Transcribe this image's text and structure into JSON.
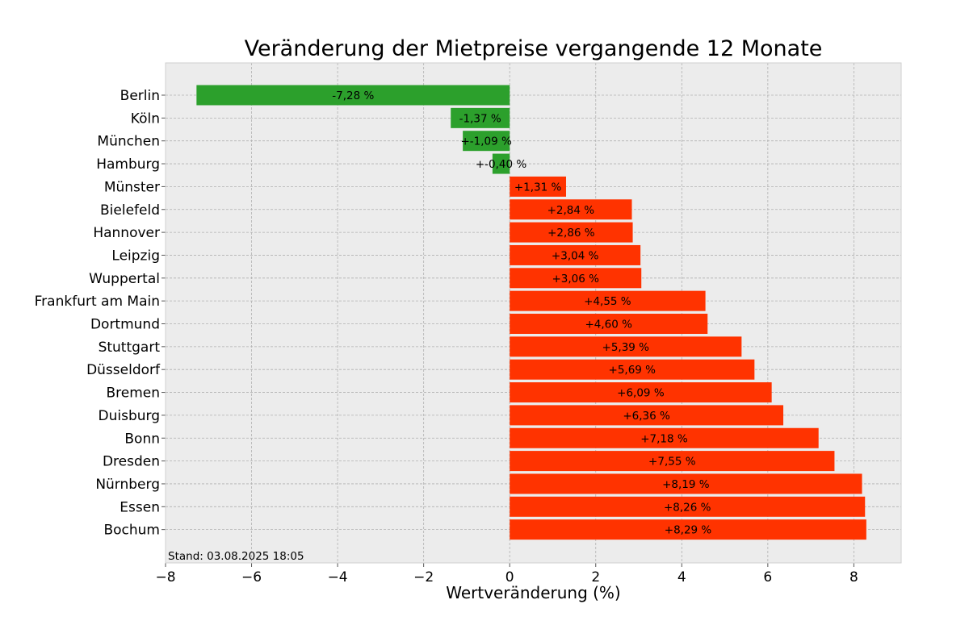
{
  "chart_data": {
    "type": "bar",
    "orientation": "horizontal",
    "title": "Veränderung der Mietpreise vergangende 12 Monate",
    "xlabel": "Wertveränderung (%)",
    "ylabel": "",
    "xlim": [
      -8.0,
      9.1
    ],
    "xticks": [
      -8,
      -6,
      -4,
      -2,
      0,
      2,
      4,
      6,
      8
    ],
    "xtick_labels": [
      "−8",
      "−6",
      "−4",
      "−2",
      "0",
      "2",
      "4",
      "6",
      "8"
    ],
    "grid": true,
    "categories": [
      "Berlin",
      "Köln",
      "München",
      "Hamburg",
      "Münster",
      "Bielefeld",
      "Hannover",
      "Leipzig",
      "Wuppertal",
      "Frankfurt am Main",
      "Dortmund",
      "Stuttgart",
      "Düsseldorf",
      "Bremen",
      "Duisburg",
      "Bonn",
      "Dresden",
      "Nürnberg",
      "Essen",
      "Bochum"
    ],
    "values": [
      -7.28,
      -1.37,
      -1.09,
      -0.4,
      1.31,
      2.84,
      2.86,
      3.04,
      3.06,
      4.55,
      4.6,
      5.39,
      5.69,
      6.09,
      6.36,
      7.18,
      7.55,
      8.19,
      8.26,
      8.29
    ],
    "value_labels": [
      "-7,28 %",
      "-1,37 %",
      "+-1,09 %",
      "+-0,40 %",
      "+1,31 %",
      "+2,84 %",
      "+2,86 %",
      "+3,04 %",
      "+3,06 %",
      "+4,55 %",
      "+4,60 %",
      "+5,39 %",
      "+5,69 %",
      "+6,09 %",
      "+6,36 %",
      "+7,18 %",
      "+7,55 %",
      "+8,19 %",
      "+8,26 %",
      "+8,29 %"
    ],
    "colors": {
      "negative": "#2ca02c",
      "positive": "#ff3300",
      "background": "#ececec",
      "grid": "#b0b0b0"
    },
    "footnote": "Stand: 03.08.2025 18:05"
  }
}
